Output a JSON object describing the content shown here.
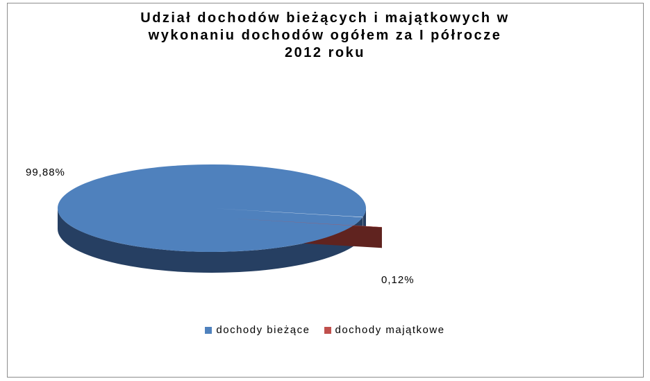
{
  "chart_data": {
    "type": "pie",
    "title_lines": [
      "Udział dochodów bieżących i majątkowych w",
      "wykonaniu dochodów ogółem za I półrocze",
      "2012 roku"
    ],
    "categories": [
      "dochody bieżące",
      "dochody majątkowe"
    ],
    "values": [
      99.88,
      0.12
    ],
    "data_labels": [
      "99,88%",
      "0,12%"
    ],
    "colors": [
      "#4f81bd",
      "#c0504d"
    ],
    "side_colors": [
      "#263f62",
      "#60231f"
    ],
    "style": "3d-exploded",
    "legend_position": "bottom"
  }
}
